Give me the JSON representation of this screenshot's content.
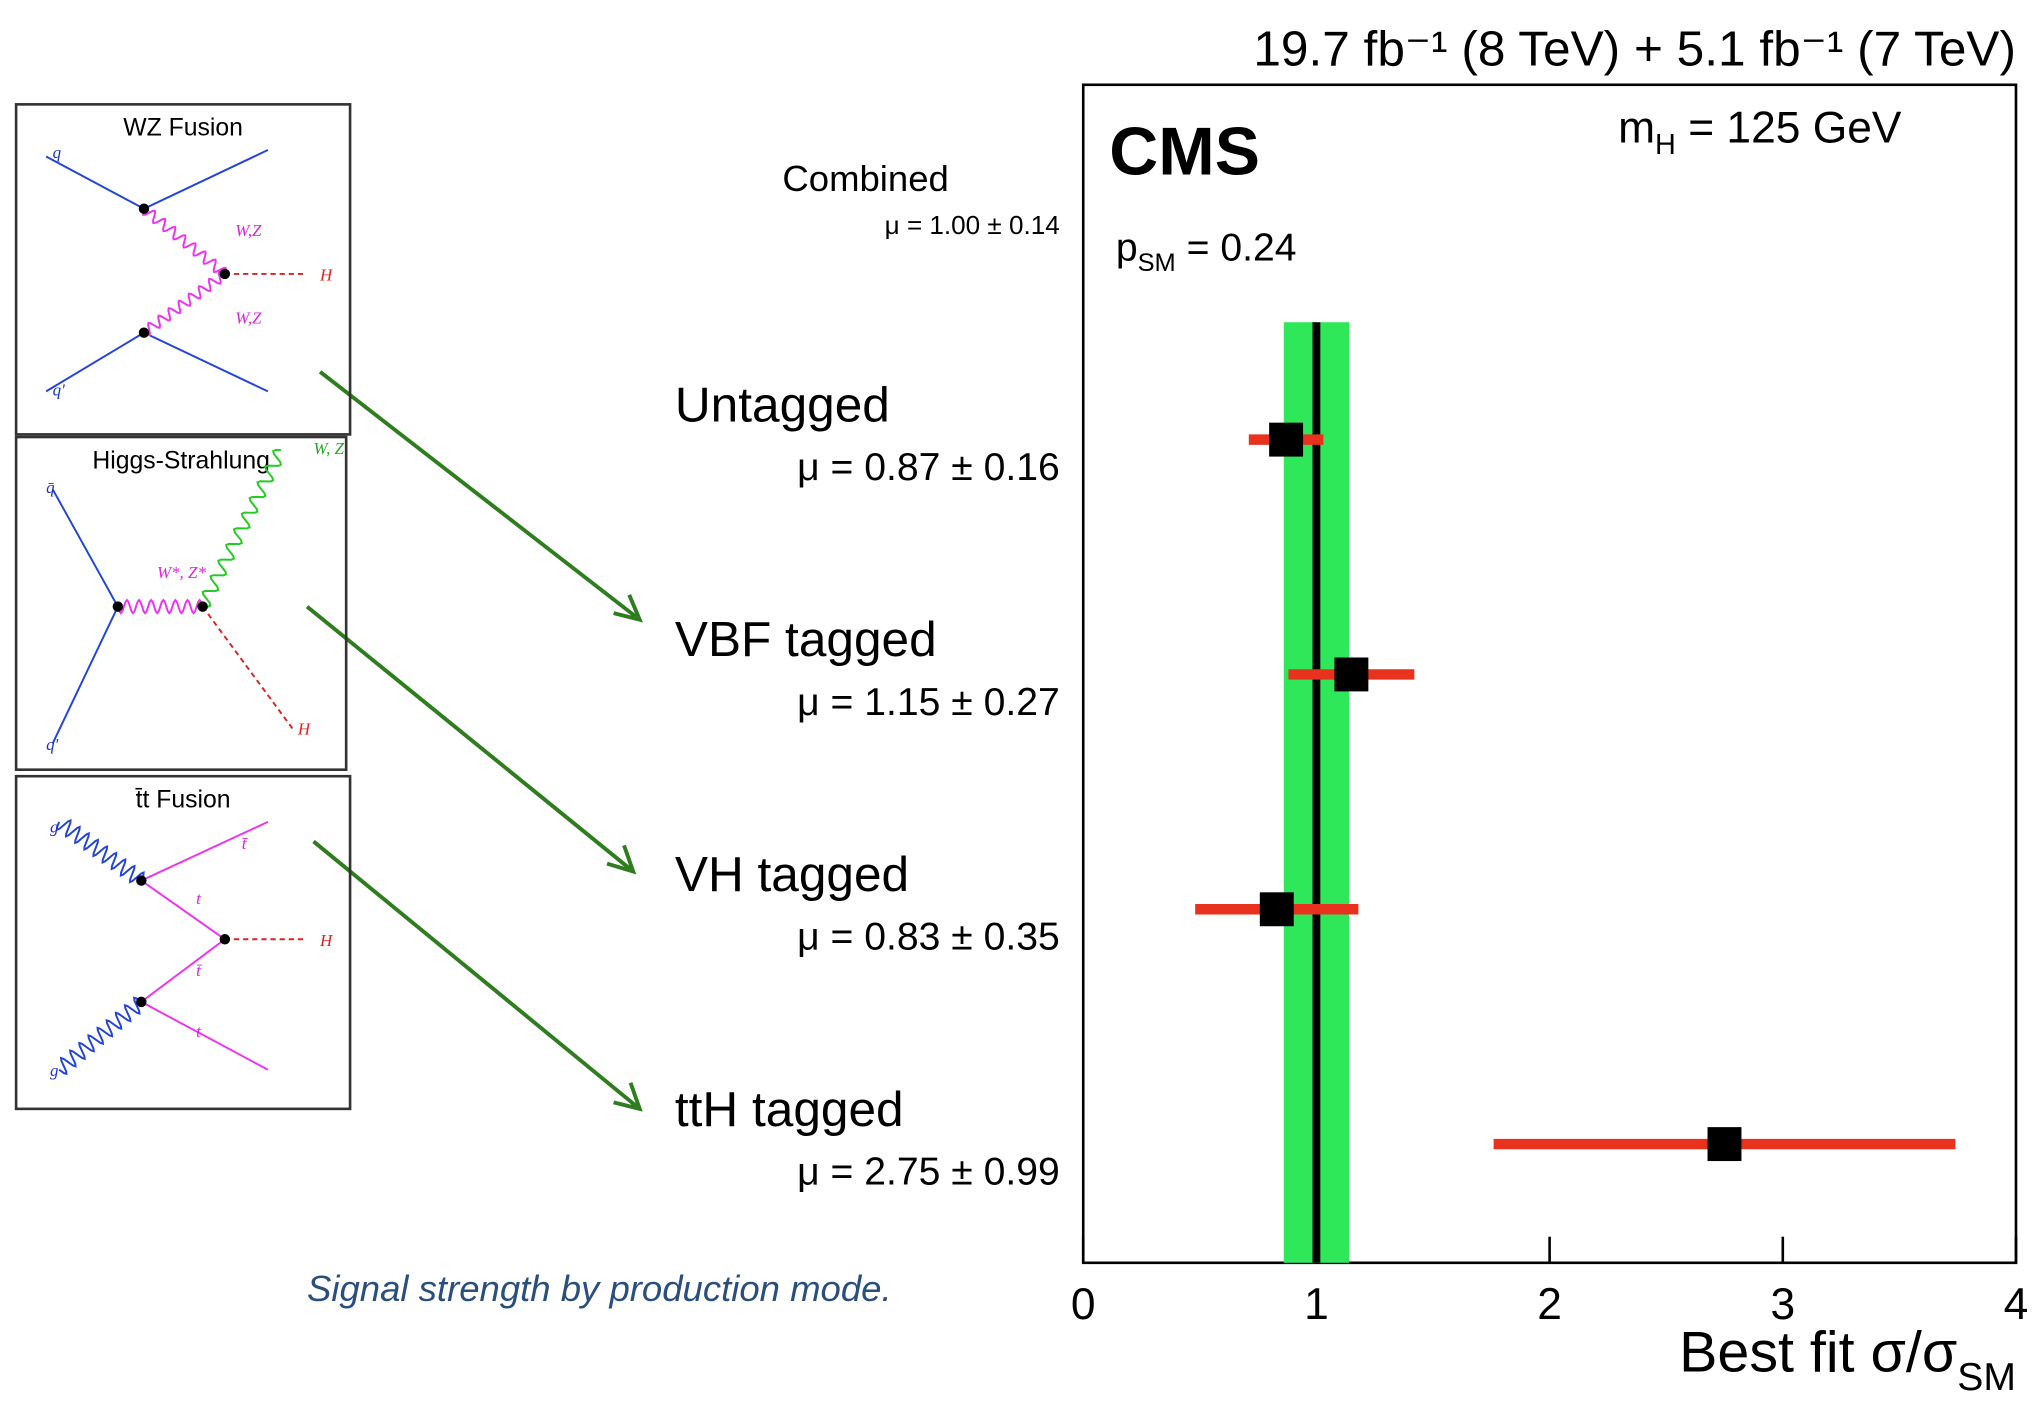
{
  "chart_data": {
    "type": "errorbar",
    "title": "19.7 fb⁻¹ (8 TeV) +  5.1 fb⁻¹ (7 TeV)",
    "experiment": "CMS",
    "annotations": [
      {
        "main": "m",
        "sub": "H",
        "tail": " = 125 GeV"
      },
      {
        "main": "p",
        "sub": "SM",
        "tail": " = 0.24"
      }
    ],
    "categories": [
      "Combined",
      "Untagged",
      "VBF tagged",
      "VH tagged",
      "ttH tagged"
    ],
    "values": [
      1.0,
      0.87,
      1.15,
      0.83,
      2.75
    ],
    "errors": [
      0.14,
      0.16,
      0.27,
      0.35,
      0.99
    ],
    "value_labels": [
      "μ = 1.00 ± 0.14",
      "μ = 0.87 ± 0.16",
      "μ = 1.15 ± 0.27",
      "μ = 0.83 ± 0.35",
      "μ = 2.75 ± 0.99"
    ],
    "xlabel": {
      "main": "Best fit σ/σ",
      "sub": "SM"
    },
    "xlim": [
      0,
      4
    ],
    "xticks": [
      0,
      1,
      2,
      3,
      4
    ],
    "band_color": "#2ee85a",
    "error_color": "#e8321e",
    "point_color": "#000000"
  },
  "diagrams": [
    {
      "title": "WZ Fusion",
      "labels": [
        "q",
        "q'",
        "W,Z",
        "W,Z",
        "H"
      ]
    },
    {
      "title": "Higgs-Strahlung",
      "labels": [
        "q̄",
        "q'",
        "W*, Z*",
        "W, Z",
        "H"
      ]
    },
    {
      "title": "t̄t Fusion",
      "labels": [
        "g",
        "g",
        "t̄",
        "t",
        "t̄",
        "t",
        "H"
      ]
    }
  ],
  "caption": "Signal strength by production mode."
}
